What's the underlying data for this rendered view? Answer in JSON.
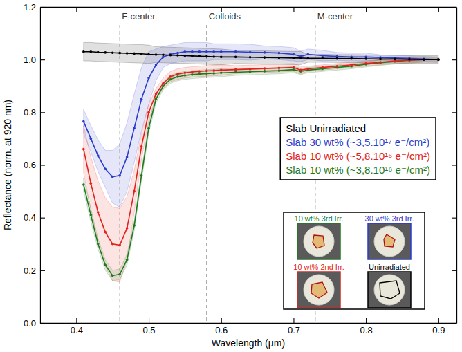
{
  "chart_data": {
    "type": "line",
    "x_label": "Wavelength (μm)",
    "y_label": "Reflectance (norm. at 920 nm)",
    "xlim": [
      0.35,
      0.925
    ],
    "ylim": [
      0,
      1.2
    ],
    "xticks": [
      0.4,
      0.5,
      0.6,
      0.7,
      0.8,
      0.9
    ],
    "yticks": [
      {
        "value": 0,
        "label": "0.0"
      },
      0.2,
      0.4,
      0.6,
      0.8,
      {
        "value": 1,
        "label": "1.0"
      },
      1.2
    ],
    "grid": false,
    "legend": "right",
    "marker": "circle",
    "x": [
      0.41,
      0.42,
      0.43,
      0.44,
      0.45,
      0.46,
      0.47,
      0.48,
      0.49,
      0.5,
      0.51,
      0.52,
      0.53,
      0.54,
      0.55,
      0.56,
      0.57,
      0.58,
      0.59,
      0.6,
      0.62,
      0.64,
      0.66,
      0.68,
      0.7,
      0.71,
      0.72,
      0.74,
      0.76,
      0.78,
      0.8,
      0.82,
      0.84,
      0.86,
      0.88,
      0.9
    ],
    "series": [
      {
        "name": "Slab Unirradiated",
        "color": "#000000",
        "values": [
          1.03,
          1.03,
          1.028,
          1.027,
          1.026,
          1.025,
          1.024,
          1.023,
          1.022,
          1.02,
          1.019,
          1.018,
          1.017,
          1.016,
          1.015,
          1.014,
          1.013,
          1.012,
          1.011,
          1.01,
          1.01,
          1.009,
          1.008,
          1.007,
          1.006,
          1.006,
          1.005,
          1.005,
          1.004,
          1.004,
          1.003,
          1.002,
          1.002,
          1.001,
          1.0,
          1.0
        ],
        "error": [
          0.035,
          0.035,
          0.035,
          0.035,
          0.035,
          0.035,
          0.035,
          0.035,
          0.035,
          0.035,
          0.03,
          0.03,
          0.03,
          0.03,
          0.03,
          0.03,
          0.03,
          0.03,
          0.03,
          0.03,
          0.025,
          0.025,
          0.025,
          0.025,
          0.025,
          0.025,
          0.015,
          0.015,
          0.015,
          0.015,
          0.015,
          0.015,
          0.015,
          0.015,
          0.015,
          0.015
        ]
      },
      {
        "name": "Slab 30 wt% (~3,5.10¹⁷ e⁻/cm²)",
        "color": "#2b3ccc",
        "values": [
          0.765,
          0.7,
          0.635,
          0.585,
          0.555,
          0.56,
          0.63,
          0.74,
          0.85,
          0.93,
          0.98,
          1.01,
          1.02,
          1.025,
          1.03,
          1.03,
          1.03,
          1.03,
          1.03,
          1.03,
          1.03,
          1.028,
          1.027,
          1.025,
          1.02,
          1.012,
          1.02,
          1.015,
          1.012,
          1.01,
          1.01,
          1.008,
          1.006,
          1.004,
          1.002,
          1.0
        ],
        "error": [
          0.045,
          0.05,
          0.06,
          0.07,
          0.1,
          0.12,
          0.13,
          0.13,
          0.12,
          0.1,
          0.06,
          0.04,
          0.035,
          0.035,
          0.035,
          0.035,
          0.035,
          0.035,
          0.03,
          0.03,
          0.03,
          0.03,
          0.025,
          0.025,
          0.025,
          0.02,
          0.02,
          0.02,
          0.015,
          0.015,
          0.015,
          0.01,
          0.01,
          0.01,
          0.01,
          0.01
        ]
      },
      {
        "name": "Slab 10 wt% (~5,8.10¹⁶ e⁻/cm²)",
        "color": "#e3211c",
        "values": [
          0.66,
          0.53,
          0.42,
          0.345,
          0.3,
          0.295,
          0.36,
          0.5,
          0.67,
          0.8,
          0.87,
          0.91,
          0.935,
          0.945,
          0.95,
          0.953,
          0.955,
          0.957,
          0.958,
          0.96,
          0.962,
          0.964,
          0.966,
          0.968,
          0.97,
          0.96,
          0.965,
          0.97,
          0.975,
          0.98,
          0.985,
          0.99,
          0.995,
          0.998,
          1.0,
          1.0
        ],
        "error": [
          0.09,
          0.1,
          0.12,
          0.13,
          0.14,
          0.14,
          0.12,
          0.08,
          0.05,
          0.03,
          0.02,
          0.02,
          0.02,
          0.02,
          0.02,
          0.02,
          0.02,
          0.02,
          0.02,
          0.02,
          0.015,
          0.015,
          0.015,
          0.015,
          0.015,
          0.015,
          0.01,
          0.01,
          0.01,
          0.01,
          0.01,
          0.01,
          0.01,
          0.01,
          0.01,
          0.01
        ]
      },
      {
        "name": "Slab 10 wt% (~3,8.10¹⁶ e⁻/cm²)",
        "color": "#1e7a1e",
        "values": [
          0.525,
          0.41,
          0.3,
          0.22,
          0.18,
          0.185,
          0.24,
          0.37,
          0.56,
          0.74,
          0.85,
          0.9,
          0.925,
          0.935,
          0.94,
          0.943,
          0.945,
          0.947,
          0.948,
          0.95,
          0.952,
          0.954,
          0.956,
          0.958,
          0.962,
          0.955,
          0.96,
          0.965,
          0.97,
          0.975,
          0.982,
          0.988,
          0.993,
          0.997,
          1.0,
          1.0
        ],
        "error": [
          0.025,
          0.025,
          0.02,
          0.02,
          0.02,
          0.02,
          0.02,
          0.02,
          0.02,
          0.02,
          0.015,
          0.015,
          0.015,
          0.015,
          0.015,
          0.015,
          0.015,
          0.015,
          0.015,
          0.015,
          0.012,
          0.012,
          0.012,
          0.012,
          0.012,
          0.012,
          0.01,
          0.01,
          0.01,
          0.01,
          0.01,
          0.01,
          0.01,
          0.01,
          0.01,
          0.01
        ]
      }
    ],
    "annotations": [
      {
        "x": 0.46,
        "label": "F-center"
      },
      {
        "x": 0.58,
        "label": "Colloids"
      },
      {
        "x": 0.73,
        "label": "M-center"
      }
    ],
    "photo_labels": [
      {
        "label": "10 wt% 3rd Irr.",
        "color": "#1e7a1e"
      },
      {
        "label": "30 wt% 3rd Irr.",
        "color": "#2b3ccc"
      },
      {
        "label": "10 wt% 2nd Irr.",
        "color": "#e3211c"
      },
      {
        "label": "Unirradiated",
        "color": "#000000"
      }
    ]
  }
}
